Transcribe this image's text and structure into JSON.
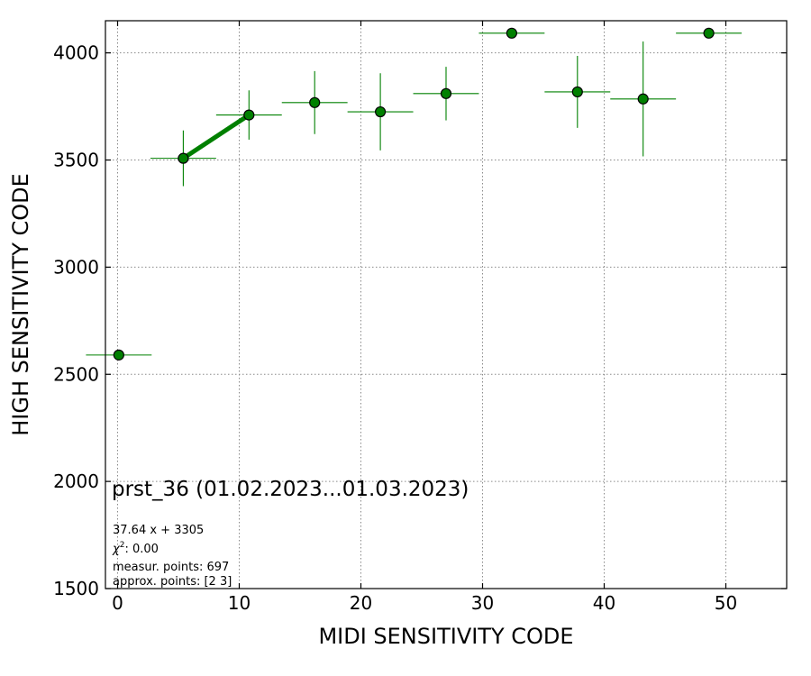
{
  "chart_data": {
    "type": "scatter",
    "xlabel": "MIDI SENSITIVITY CODE",
    "ylabel": "HIGH SENSITIVITY CODE",
    "xlim": [
      -1,
      55
    ],
    "ylim": [
      1500,
      4150
    ],
    "xticks": [
      0,
      10,
      20,
      30,
      40,
      50
    ],
    "yticks": [
      1500,
      2000,
      2500,
      3000,
      3500,
      4000
    ],
    "grid": true,
    "points": [
      {
        "x": 0.1,
        "y": 2590,
        "xerr": 2.7,
        "yerr": 0
      },
      {
        "x": 5.4,
        "y": 3508,
        "xerr": 2.7,
        "yerr": 130
      },
      {
        "x": 10.8,
        "y": 3710,
        "xerr": 2.7,
        "yerr": 115
      },
      {
        "x": 16.2,
        "y": 3768,
        "xerr": 2.7,
        "yerr": 147
      },
      {
        "x": 21.6,
        "y": 3725,
        "xerr": 2.7,
        "yerr": 180
      },
      {
        "x": 27.0,
        "y": 3810,
        "xerr": 2.7,
        "yerr": 125
      },
      {
        "x": 32.4,
        "y": 4092,
        "xerr": 2.7,
        "yerr": 0
      },
      {
        "x": 37.8,
        "y": 3818,
        "xerr": 2.7,
        "yerr": 168
      },
      {
        "x": 43.2,
        "y": 3785,
        "xerr": 2.7,
        "yerr": 268
      },
      {
        "x": 48.6,
        "y": 4092,
        "xerr": 2.7,
        "yerr": 0
      }
    ],
    "fit_line": {
      "x": [
        5.4,
        10.8
      ],
      "y": [
        3508,
        3710
      ],
      "color": "#008000"
    },
    "colors": {
      "marker": "#008000",
      "errorbar": "#008000",
      "fit": "#008000"
    },
    "annotations": {
      "title": "prst_36 (01.02.2023...01.03.2023)",
      "equation": "37.64 x + 3305",
      "chi_symbol": "χ",
      "chi_sup": "2",
      "chi_value": ": 0.00",
      "measur_points": "measur. points: 697",
      "approx_points": "approx. points: [2 3]"
    }
  }
}
